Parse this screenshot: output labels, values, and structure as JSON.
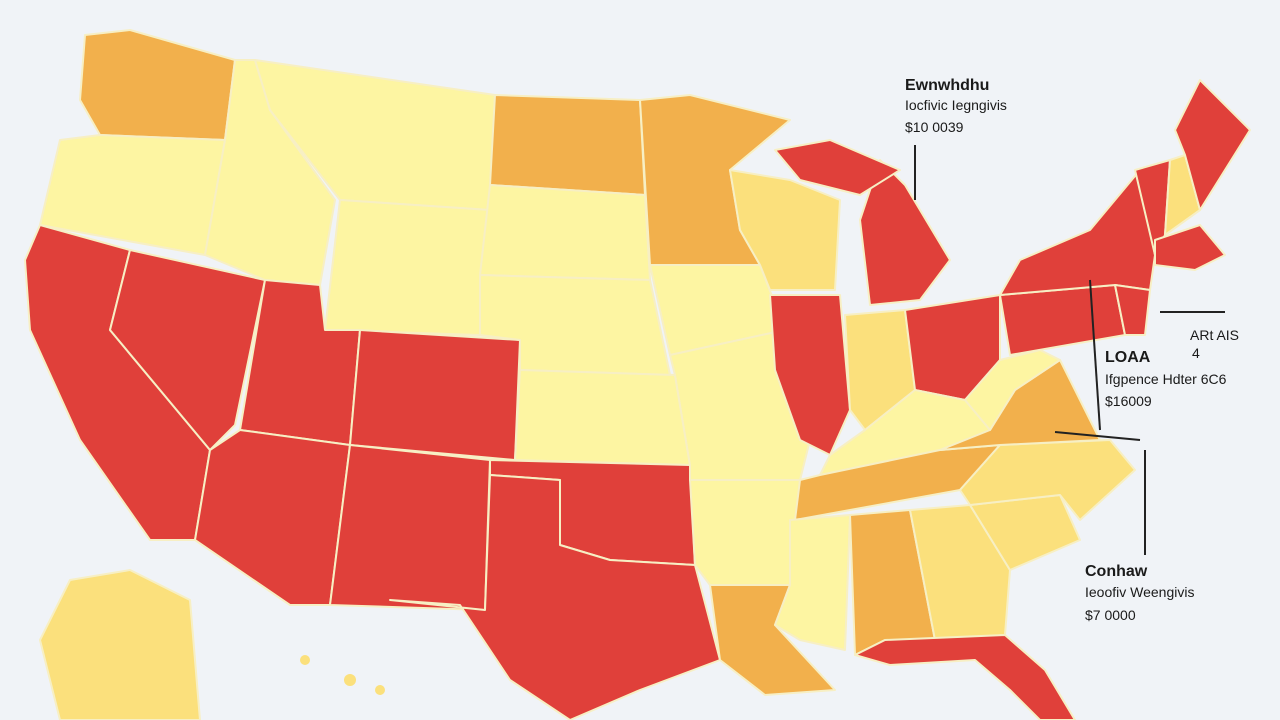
{
  "annotations": [
    {
      "lines": [
        "Ewnwhdhu",
        "Iocfivic Iegngivis",
        "$10 0039"
      ]
    },
    {
      "lines": [
        "ARt AIS",
        "4"
      ]
    },
    {
      "lines": [
        "LOAA",
        "Ifgpence Hdter 6C6",
        "$16009"
      ]
    },
    {
      "lines": [
        "Conhaw",
        "Ieoofiv Weengivis",
        "$7 0000"
      ]
    }
  ]
}
